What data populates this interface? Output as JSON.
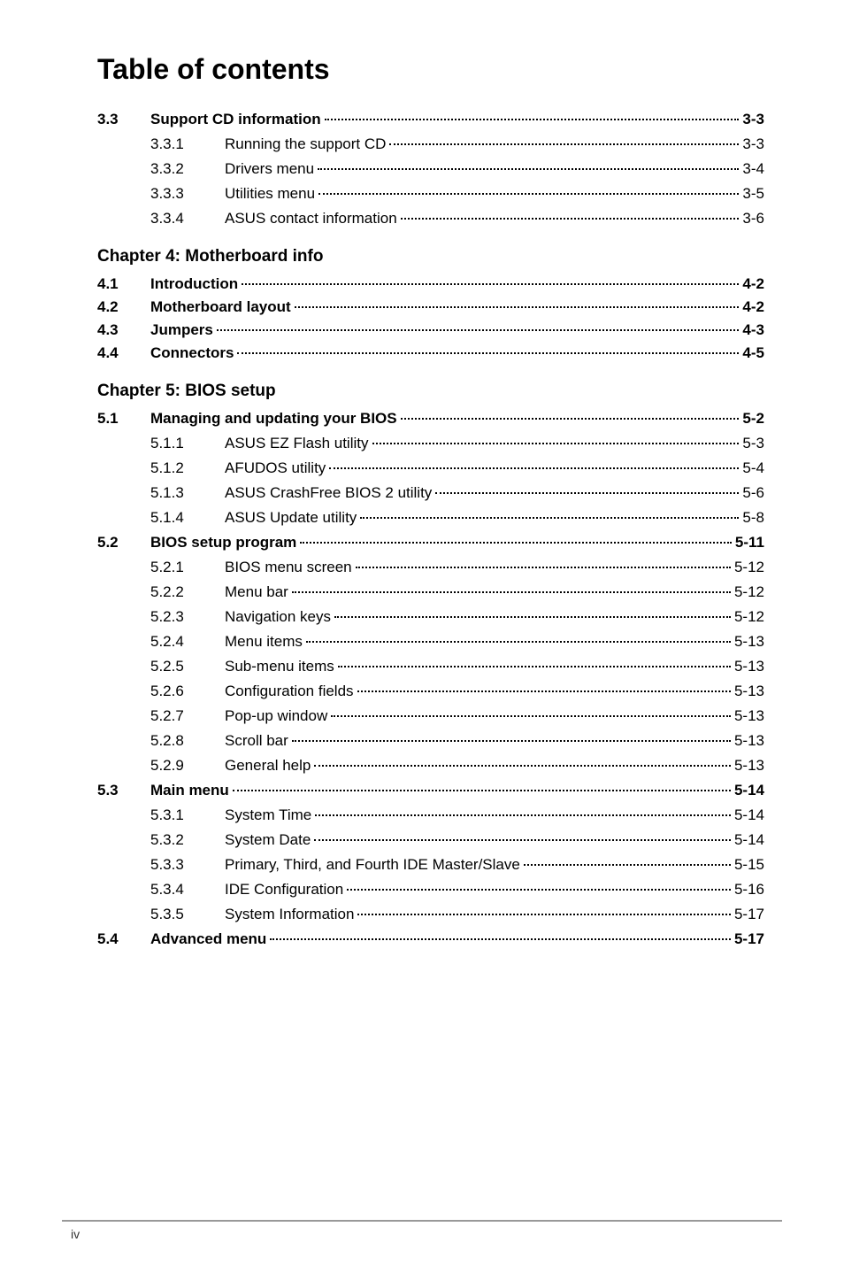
{
  "page": {
    "title": "Table of contents",
    "footer_page": "iv"
  },
  "toc": {
    "sections": [
      {
        "num": "3.3",
        "label": "Support CD information",
        "page": "3-3",
        "bold": true,
        "subs": [
          {
            "num": "3.3.1",
            "label": "Running the support CD",
            "page": "3-3"
          },
          {
            "num": "3.3.2",
            "label": "Drivers menu",
            "page": "3-4"
          },
          {
            "num": "3.3.3",
            "label": "Utilities menu",
            "page": "3-5"
          },
          {
            "num": "3.3.4",
            "label": "ASUS contact information",
            "page": "3-6"
          }
        ]
      }
    ],
    "chapter4": {
      "heading": "Chapter 4: Motherboard info",
      "items": [
        {
          "num": "4.1",
          "label": "Introduction",
          "page": "4-2"
        },
        {
          "num": "4.2",
          "label": "Motherboard layout",
          "page": "4-2"
        },
        {
          "num": "4.3",
          "label": "Jumpers",
          "page": "4-3"
        },
        {
          "num": "4.4",
          "label": "Connectors",
          "page": "4-5"
        }
      ]
    },
    "chapter5": {
      "heading": "Chapter 5: BIOS setup",
      "items": [
        {
          "num": "5.1",
          "label": "Managing and updating your BIOS",
          "page": "5-2",
          "bold": true,
          "subs": [
            {
              "num": "5.1.1",
              "label": "ASUS EZ Flash utility",
              "page": "5-3"
            },
            {
              "num": "5.1.2",
              "label": "AFUDOS utility",
              "page": "5-4"
            },
            {
              "num": "5.1.3",
              "label": "ASUS CrashFree BIOS 2 utility",
              "page": "5-6"
            },
            {
              "num": "5.1.4",
              "label": "ASUS Update utility",
              "page": "5-8"
            }
          ]
        },
        {
          "num": "5.2",
          "label": "BIOS setup program",
          "page": "5-11",
          "bold": true,
          "subs": [
            {
              "num": "5.2.1",
              "label": "BIOS menu screen",
              "page": "5-12"
            },
            {
              "num": "5.2.2",
              "label": "Menu bar",
              "page": "5-12"
            },
            {
              "num": "5.2.3",
              "label": "Navigation keys",
              "page": "5-12"
            },
            {
              "num": "5.2.4",
              "label": "Menu items",
              "page": "5-13"
            },
            {
              "num": "5.2.5",
              "label": "Sub-menu items",
              "page": "5-13"
            },
            {
              "num": "5.2.6",
              "label": "Configuration fields",
              "page": "5-13"
            },
            {
              "num": "5.2.7",
              "label": "Pop-up window",
              "page": "5-13"
            },
            {
              "num": "5.2.8",
              "label": "Scroll bar",
              "page": "5-13"
            },
            {
              "num": "5.2.9",
              "label": "General help",
              "page": "5-13"
            }
          ]
        },
        {
          "num": "5.3",
          "label": "Main menu",
          "page": "5-14",
          "bold": true,
          "subs": [
            {
              "num": "5.3.1",
              "label": "System Time",
              "page": "5-14"
            },
            {
              "num": "5.3.2",
              "label": "System Date",
              "page": "5-14"
            },
            {
              "num": "5.3.3",
              "label": "Primary, Third, and Fourth IDE Master/Slave",
              "page": "5-15"
            },
            {
              "num": "5.3.4",
              "label": "IDE Configuration",
              "page": "5-16"
            },
            {
              "num": "5.3.5",
              "label": "System Information",
              "page": "5-17"
            }
          ]
        },
        {
          "num": "5.4",
          "label": "Advanced menu",
          "page": "5-17",
          "bold": true,
          "subs": []
        }
      ]
    }
  }
}
